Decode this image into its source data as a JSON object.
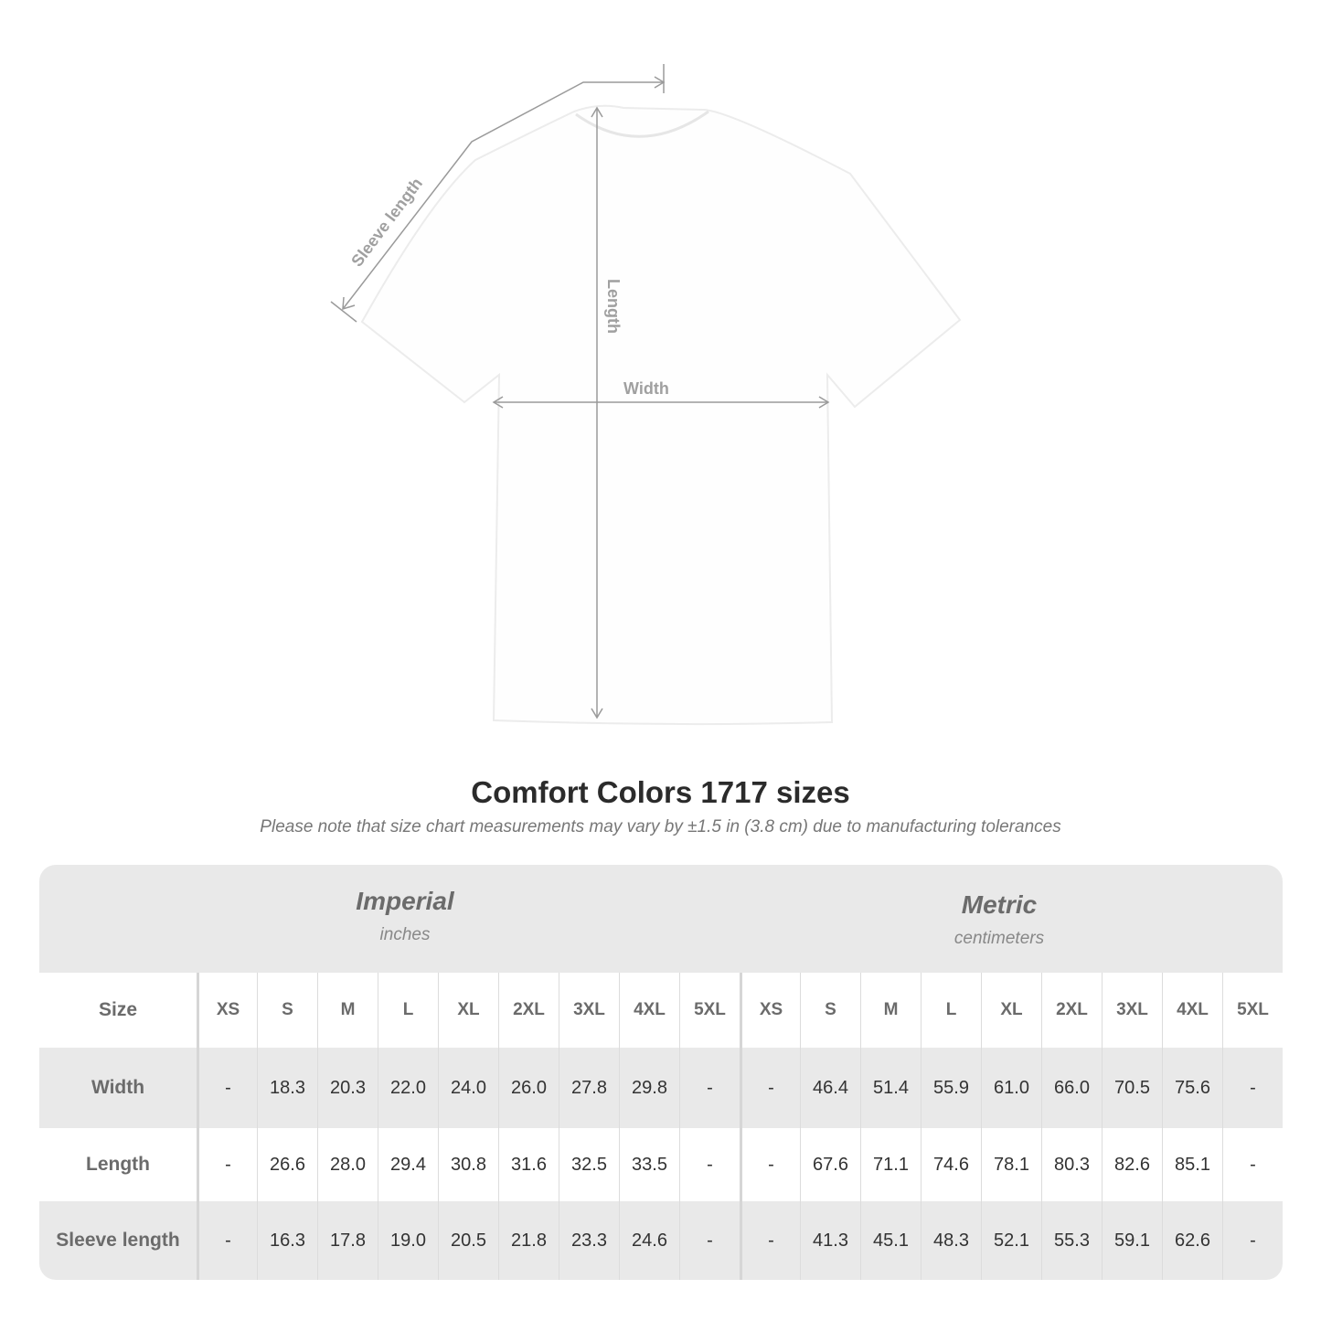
{
  "diagram": {
    "labels": {
      "sleeve": "Sleeve length",
      "length": "Length",
      "width": "Width"
    },
    "line_color": "#9a9a9a"
  },
  "title": "Comfort Colors 1717 sizes",
  "note": "Please note that size chart measurements may vary by ±1.5 in (3.8 cm) due to manufacturing tolerances",
  "table": {
    "imperial": {
      "name": "Imperial",
      "unit": "inches"
    },
    "metric": {
      "name": "Metric",
      "unit": "centimeters"
    },
    "size_label": "Size",
    "sizes": [
      "XS",
      "S",
      "M",
      "L",
      "XL",
      "2XL",
      "3XL",
      "4XL",
      "5XL"
    ],
    "rows": [
      {
        "label": "Width",
        "imperial": [
          "-",
          "18.3",
          "20.3",
          "22.0",
          "24.0",
          "26.0",
          "27.8",
          "29.8",
          "-"
        ],
        "metric": [
          "-",
          "46.4",
          "51.4",
          "55.9",
          "61.0",
          "66.0",
          "70.5",
          "75.6",
          "-"
        ]
      },
      {
        "label": "Length",
        "imperial": [
          "-",
          "26.6",
          "28.0",
          "29.4",
          "30.8",
          "31.6",
          "32.5",
          "33.5",
          "-"
        ],
        "metric": [
          "-",
          "67.6",
          "71.1",
          "74.6",
          "78.1",
          "80.3",
          "82.6",
          "85.1",
          "-"
        ]
      },
      {
        "label": "Sleeve length",
        "imperial": [
          "-",
          "16.3",
          "17.8",
          "19.0",
          "20.5",
          "21.8",
          "23.3",
          "24.6",
          "-"
        ],
        "metric": [
          "-",
          "41.3",
          "45.1",
          "48.3",
          "52.1",
          "55.3",
          "59.1",
          "62.6",
          "-"
        ]
      }
    ]
  }
}
